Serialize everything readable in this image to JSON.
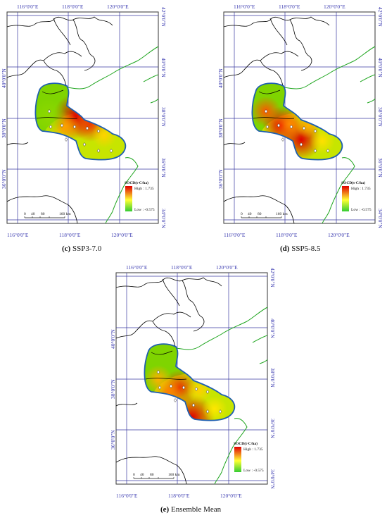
{
  "panels": [
    {
      "id": "c",
      "caption_letter": "(c)",
      "caption_text": "SSP3-7.0",
      "lon_labels": [
        "116°0'0\"E",
        "118°0'0\"E",
        "120°0'0\"E"
      ],
      "lat_labels": [
        "42°0'0\"N",
        "40°0'0\"N",
        "38°0'0\"N",
        "36°0'0\"N",
        "34°0'0\"N"
      ],
      "legend": {
        "title": "SOCD(t·C/ha)",
        "high": "High : 1.735",
        "low": "Low : -0.575"
      },
      "scalebar": {
        "ticks": [
          "0",
          "40",
          "80",
          "160 km"
        ]
      }
    },
    {
      "id": "d",
      "caption_letter": "(d)",
      "caption_text": "SSP5-8.5",
      "lon_labels": [
        "116°0'0\"E",
        "118°0'0\"E",
        "120°0'0\"E"
      ],
      "lat_labels": [
        "42°0'0\"N",
        "40°0'0\"N",
        "38°0'0\"N",
        "36°0'0\"N",
        "34°0'0\"N"
      ],
      "legend": {
        "title": "SOCD(t·C/ha)",
        "high": "High : 1.735",
        "low": "Low : -0.575"
      },
      "scalebar": {
        "ticks": [
          "0",
          "40",
          "80",
          "160 km"
        ]
      }
    },
    {
      "id": "e",
      "caption_letter": "(e)",
      "caption_text": "Ensemble Mean",
      "lon_labels": [
        "116°0'0\"E",
        "118°0'0\"E",
        "120°0'0\"E"
      ],
      "lat_labels": [
        "42°0'0\"N",
        "40°0'0\"N",
        "38°0'0\"N",
        "36°0'0\"N",
        "34°0'0\"N"
      ],
      "legend": {
        "title": "SOCD(t·C/ha)",
        "high": "High : 1.735",
        "low": "Low : -0.575"
      },
      "scalebar": {
        "ticks": [
          "0",
          "40",
          "80",
          "160 km"
        ]
      }
    }
  ],
  "colors": {
    "map_border": "#333333",
    "graticule": "#3a3aa0",
    "coast": "#1ea51e",
    "boundary": "#000000",
    "study_outline": "#1f5fb0",
    "tick_label": "#3a3ab0",
    "ramp_high": "#e00000",
    "ramp_mid": "#ffff33",
    "ramp_low": "#33cc33"
  }
}
